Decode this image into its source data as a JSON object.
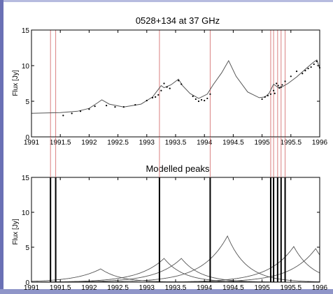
{
  "chart_data": [
    {
      "type": "line",
      "title": "0528+134 at 37 GHz",
      "xlabel": "",
      "ylabel": "Flux [Jy]",
      "xlim": [
        1991,
        1996
      ],
      "ylim": [
        0,
        15
      ],
      "xticks": [
        "1991",
        "1991.5",
        "1992",
        "1992.5",
        "1993",
        "1993.5",
        "1994",
        "1994.5",
        "1995",
        "1995.5",
        "1996"
      ],
      "yticks": [
        "0",
        "5",
        "10",
        "15"
      ],
      "grid": false,
      "legend": "none",
      "event_lines": [
        1991.33,
        1991.42,
        1993.22,
        1994.1,
        1995.15,
        1995.2,
        1995.27,
        1995.33,
        1995.4
      ],
      "series": [
        {
          "style": "line",
          "color": "#555555",
          "x": [
            1991.0,
            1991.5,
            1991.8,
            1992.0,
            1992.15,
            1992.22,
            1992.35,
            1992.6,
            1992.9,
            1993.1,
            1993.25,
            1993.3,
            1993.42,
            1993.55,
            1993.62,
            1993.75,
            1993.9,
            1994.05,
            1994.15,
            1994.3,
            1994.42,
            1994.55,
            1994.75,
            1994.95,
            1995.05,
            1995.12,
            1995.2,
            1995.3,
            1995.45,
            1995.6,
            1995.75,
            1995.88,
            1995.95,
            1996.0
          ],
          "y": [
            3.3,
            3.4,
            3.6,
            4.0,
            4.8,
            5.2,
            4.6,
            4.2,
            4.6,
            5.6,
            7.2,
            6.9,
            7.3,
            8.1,
            7.2,
            6.1,
            5.4,
            6.0,
            7.3,
            9.0,
            10.7,
            8.5,
            6.3,
            5.5,
            5.6,
            6.1,
            7.4,
            6.8,
            7.5,
            8.4,
            9.5,
            10.4,
            10.8,
            9.6
          ]
        },
        {
          "style": "points",
          "color": "#000000",
          "x": [
            1991.55,
            1991.7,
            1991.85,
            1992.0,
            1992.1,
            1992.3,
            1992.45,
            1992.6,
            1992.8,
            1993.0,
            1993.1,
            1993.15,
            1993.2,
            1993.25,
            1993.3,
            1993.35,
            1993.4,
            1993.55,
            1993.6,
            1993.8,
            1993.85,
            1993.9,
            1993.95,
            1994.0,
            1994.05,
            1994.1,
            1995.0,
            1995.05,
            1995.1,
            1995.15,
            1995.2,
            1995.22,
            1995.25,
            1995.28,
            1995.3,
            1995.33,
            1995.35,
            1995.4,
            1995.5,
            1995.6,
            1995.7,
            1995.75,
            1995.8,
            1995.85,
            1995.9,
            1995.95,
            1996.0
          ],
          "y": [
            3.0,
            3.3,
            3.6,
            3.9,
            4.3,
            4.4,
            4.2,
            4.2,
            4.5,
            5.1,
            5.5,
            5.6,
            5.9,
            6.5,
            7.5,
            7.0,
            6.8,
            7.9,
            7.4,
            5.7,
            5.3,
            5.0,
            5.2,
            5.1,
            5.4,
            6.0,
            5.3,
            5.6,
            5.8,
            6.0,
            6.5,
            6.1,
            7.5,
            7.2,
            6.9,
            7.0,
            7.3,
            7.8,
            8.5,
            9.2,
            8.9,
            9.3,
            9.6,
            9.8,
            10.2,
            10.6,
            9.7
          ]
        }
      ]
    },
    {
      "type": "line",
      "title": "Modelled peaks",
      "xlabel": "",
      "ylabel": "Flux [Jy]",
      "xlim": [
        1991,
        1996
      ],
      "ylim": [
        0,
        15
      ],
      "xticks": [
        "1991",
        "1991.5",
        "1992",
        "1992.5",
        "1993",
        "1993.5",
        "1994",
        "1994.5",
        "1995",
        "1995.5",
        "1996"
      ],
      "yticks": [
        "0",
        "5",
        "10",
        "15"
      ],
      "grid": false,
      "legend": "none",
      "event_lines": [
        1991.33,
        1991.42,
        1993.22,
        1994.1,
        1995.15,
        1995.2,
        1995.27,
        1995.33,
        1995.4
      ],
      "peaks": [
        {
          "t": 1992.2,
          "height": 1.9
        },
        {
          "t": 1993.3,
          "height": 3.4
        },
        {
          "t": 1993.6,
          "height": 3.4
        },
        {
          "t": 1994.4,
          "height": 6.6
        },
        {
          "t": 1995.55,
          "height": 5.1
        },
        {
          "t": 1995.93,
          "height": 4.8
        }
      ]
    }
  ]
}
